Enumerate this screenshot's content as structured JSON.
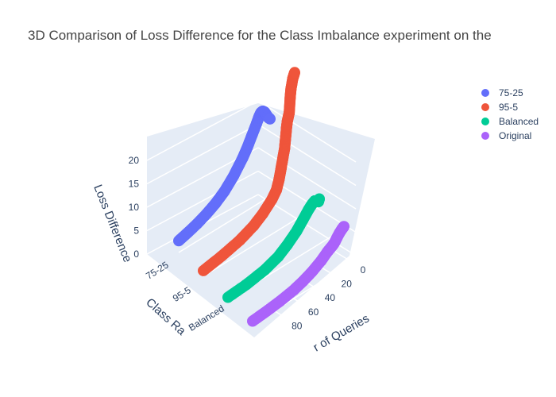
{
  "chart_data": {
    "type": "scatter3d",
    "title": "3D Comparison of Loss Difference for the Class Imbalance experiment on the",
    "axes": {
      "x": {
        "label": "Number of Queries",
        "visible_label": "r of Queries",
        "ticks": [
          "0",
          "20",
          "40",
          "60",
          "80"
        ],
        "range": [
          0,
          100
        ]
      },
      "y": {
        "label": "Class Ra",
        "categories": [
          "75-25",
          "95-5",
          "Balanced",
          "Original"
        ]
      },
      "z": {
        "label": "Loss Difference",
        "ticks": [
          "0",
          "5",
          "10",
          "15",
          "20"
        ],
        "range": [
          0,
          24
        ]
      }
    },
    "legend": {
      "position": "top-right"
    },
    "series": [
      {
        "name": "75-25",
        "color": "#636efa",
        "category_index": 0,
        "points": [
          [
            100,
            2.5
          ],
          [
            90,
            3.2
          ],
          [
            80,
            4
          ],
          [
            70,
            5
          ],
          [
            60,
            6.2
          ],
          [
            50,
            7.8
          ],
          [
            40,
            10
          ],
          [
            30,
            12.8
          ],
          [
            25,
            14.5
          ],
          [
            20,
            16.5
          ],
          [
            15,
            18.5
          ],
          [
            12,
            19.8
          ],
          [
            10,
            20.4
          ],
          [
            8,
            20.5
          ],
          [
            6,
            20.1
          ],
          [
            4,
            19.3
          ],
          [
            2,
            18.5
          ],
          [
            0,
            18
          ]
        ]
      },
      {
        "name": "95-5",
        "color": "#ef553b",
        "category_index": 1,
        "points": [
          [
            100,
            1.2
          ],
          [
            80,
            2.2
          ],
          [
            60,
            3.5
          ],
          [
            45,
            5
          ],
          [
            35,
            6.5
          ],
          [
            25,
            8.5
          ],
          [
            20,
            10
          ],
          [
            17,
            12
          ],
          [
            15,
            14
          ],
          [
            13,
            16
          ],
          [
            11,
            18
          ],
          [
            10,
            20
          ],
          [
            9,
            22
          ],
          [
            8,
            23.5
          ],
          [
            6,
            25
          ],
          [
            5,
            28
          ],
          [
            4,
            30
          ],
          [
            2,
            32
          ],
          [
            0,
            33
          ]
        ]
      },
      {
        "name": "Balanced",
        "color": "#00cc96",
        "category_index": 2,
        "points": [
          [
            100,
            0.6
          ],
          [
            80,
            1.2
          ],
          [
            60,
            2.2
          ],
          [
            45,
            3.5
          ],
          [
            35,
            5
          ],
          [
            25,
            6.8
          ],
          [
            18,
            8.5
          ],
          [
            12,
            10
          ],
          [
            8,
            10.8
          ],
          [
            5,
            11.2
          ],
          [
            3,
            11
          ],
          [
            1,
            10.6
          ],
          [
            0,
            11.1
          ]
        ]
      },
      {
        "name": "Original",
        "color": "#ab63fa",
        "category_index": 3,
        "points": [
          [
            100,
            0.6
          ],
          [
            85,
            1.1
          ],
          [
            70,
            1.7
          ],
          [
            55,
            2.5
          ],
          [
            45,
            3.3
          ],
          [
            35,
            4.3
          ],
          [
            25,
            5.6
          ],
          [
            18,
            6.8
          ],
          [
            15,
            7.2
          ],
          [
            12,
            7.6
          ],
          [
            10,
            8
          ],
          [
            8,
            8.6
          ],
          [
            5,
            9.4
          ],
          [
            2,
            10
          ],
          [
            0,
            10.3
          ]
        ]
      }
    ]
  }
}
